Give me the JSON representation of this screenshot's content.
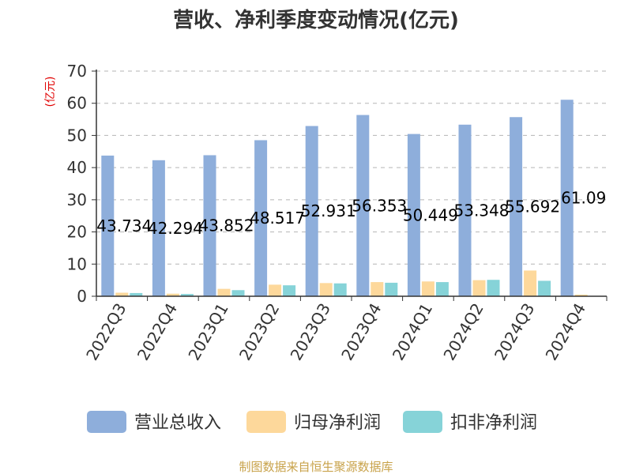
{
  "chart_data": {
    "type": "bar",
    "title": "营收、净利季度变动情况(亿元)",
    "ylabel": "(亿元)",
    "ylim": [
      0,
      70
    ],
    "yticks": [
      0,
      10,
      20,
      30,
      40,
      50,
      60,
      70
    ],
    "grid": true,
    "legend_position": "bottom",
    "categories": [
      "2022Q3",
      "2022Q4",
      "2023Q1",
      "2023Q2",
      "2023Q3",
      "2023Q4",
      "2024Q1",
      "2024Q2",
      "2024Q3",
      "2024Q4"
    ],
    "series": [
      {
        "name": "营业总收入",
        "color": "#8eaedb",
        "values": [
          43.734,
          42.294,
          43.852,
          48.517,
          52.931,
          56.353,
          50.449,
          53.348,
          55.692,
          61.09
        ],
        "labels": [
          "43.734",
          "42.294",
          "43.852",
          "48.517",
          "52.931",
          "56.353",
          "50.449",
          "53.348",
          "55.692",
          "61.09"
        ]
      },
      {
        "name": "归母净利润",
        "color": "#fdd89b",
        "values": [
          1.1,
          0.8,
          2.3,
          3.6,
          4.1,
          4.4,
          4.6,
          5.0,
          8.0,
          0.5
        ]
      },
      {
        "name": "扣非净利润",
        "color": "#86d3d8",
        "values": [
          1.0,
          0.7,
          1.9,
          3.4,
          4.0,
          4.2,
          4.4,
          5.1,
          4.8,
          0.0
        ]
      }
    ],
    "source": "制图数据来自恒生聚源数据库"
  }
}
